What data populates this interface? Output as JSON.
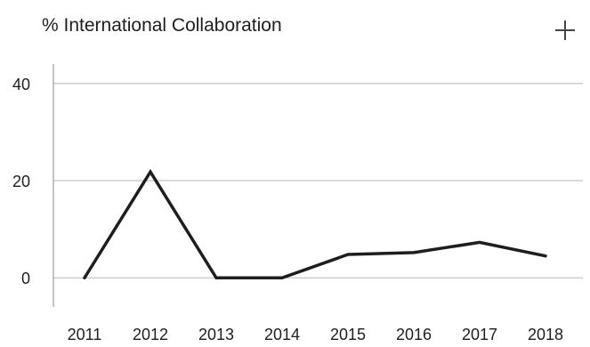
{
  "header": {
    "title": "% International Collaboration",
    "add_icon": "plus-icon"
  },
  "chart_data": {
    "type": "line",
    "title": "% International Collaboration",
    "xlabel": "",
    "ylabel": "",
    "categories": [
      "2011",
      "2012",
      "2013",
      "2014",
      "2015",
      "2016",
      "2017",
      "2018"
    ],
    "series": [
      {
        "values": [
          0,
          21.8,
          0,
          0,
          4.8,
          5.2,
          7.3,
          4.5
        ],
        "color": "#1e1e1e"
      }
    ],
    "ylim": [
      -6,
      44
    ],
    "yticks": [
      0,
      20,
      40
    ],
    "grid": true,
    "legend": "none"
  }
}
